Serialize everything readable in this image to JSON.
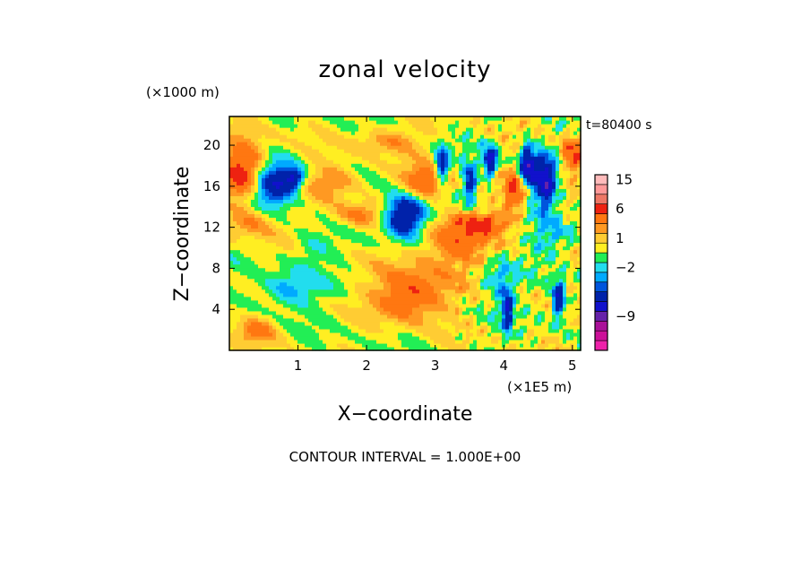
{
  "chart_data": {
    "type": "heatmap",
    "title": "zonal velocity",
    "xlabel": "X−coordinate",
    "ylabel": "Z−coordinate",
    "x_unit": "(×1E5 m)",
    "y_unit": "(×1000 m)",
    "time_label": "t=80400 s",
    "contour_interval_text": "CONTOUR INTERVAL = 1.000E+00",
    "xlim": [
      0,
      5.12
    ],
    "ylim": [
      0,
      22.8
    ],
    "x_ticks": [
      1,
      2,
      3,
      4,
      5
    ],
    "y_ticks": [
      4,
      8,
      12,
      16,
      20
    ],
    "colorbar": {
      "levels": [
        {
          "max": -14,
          "color": "#ee22aa"
        },
        {
          "max": -12,
          "color": "#cc1199"
        },
        {
          "max": -10,
          "color": "#aa1199"
        },
        {
          "max": -8,
          "color": "#6622aa"
        },
        {
          "max": -6,
          "color": "#1111cc"
        },
        {
          "max": -4,
          "color": "#0022aa"
        },
        {
          "max": -3,
          "color": "#0055dd"
        },
        {
          "max": -2,
          "color": "#00aaff"
        },
        {
          "max": -1,
          "color": "#22ddee"
        },
        {
          "max": 0,
          "color": "#22ee55"
        },
        {
          "max": 1,
          "color": "#ffee22"
        },
        {
          "max": 2,
          "color": "#ffcc33"
        },
        {
          "max": 3,
          "color": "#ff9922"
        },
        {
          "max": 5,
          "color": "#ff7711"
        },
        {
          "max": 8,
          "color": "#ee2211"
        },
        {
          "max": 11,
          "color": "#ee7766"
        },
        {
          "max": 14,
          "color": "#ff9999"
        },
        {
          "max": 99,
          "color": "#ffbbbb"
        }
      ],
      "tick_labels": [
        {
          "label": "15",
          "value": 15
        },
        {
          "label": "6",
          "value": 6
        },
        {
          "label": "1",
          "value": 1
        },
        {
          "label": "−2",
          "value": -2
        },
        {
          "label": "−9",
          "value": -9
        }
      ]
    },
    "features": [
      {
        "x": 0.25,
        "z": 17.3,
        "sx": 0.35,
        "sz": 3.0,
        "amp": 7
      },
      {
        "x": 0.6,
        "z": 16.3,
        "sx": 0.35,
        "sz": 2.2,
        "amp": -8
      },
      {
        "x": 1.5,
        "z": 16.5,
        "sx": 0.4,
        "sz": 1.6,
        "amp": 3
      },
      {
        "x": 2.55,
        "z": 13.2,
        "sx": 0.3,
        "sz": 2.0,
        "amp": -8
      },
      {
        "x": 2.9,
        "z": 16.4,
        "sx": 0.35,
        "sz": 1.6,
        "amp": 5
      },
      {
        "x": 2.65,
        "z": 5.5,
        "sx": 0.5,
        "sz": 2.5,
        "amp": 5
      },
      {
        "x": 3.3,
        "z": 10.5,
        "sx": 0.5,
        "sz": 2.5,
        "amp": 4
      },
      {
        "x": 3.1,
        "z": 17.8,
        "sx": 0.1,
        "sz": 1.8,
        "amp": -7
      },
      {
        "x": 3.5,
        "z": 16.5,
        "sx": 0.1,
        "sz": 1.8,
        "amp": -6
      },
      {
        "x": 3.8,
        "z": 18.5,
        "sx": 0.1,
        "sz": 1.5,
        "amp": -7
      },
      {
        "x": 4.35,
        "z": 18.0,
        "sx": 0.12,
        "sz": 2.0,
        "amp": -8
      },
      {
        "x": 4.6,
        "z": 16.5,
        "sx": 0.15,
        "sz": 2.5,
        "amp": -8
      },
      {
        "x": 4.15,
        "z": 15.5,
        "sx": 0.15,
        "sz": 2.0,
        "amp": 5
      },
      {
        "x": 5.0,
        "z": 19.0,
        "sx": 0.15,
        "sz": 2.0,
        "amp": 5
      },
      {
        "x": 4.05,
        "z": 4.0,
        "sx": 0.08,
        "sz": 2.0,
        "amp": -6
      },
      {
        "x": 4.8,
        "z": 5.0,
        "sx": 0.1,
        "sz": 1.8,
        "amp": -7
      },
      {
        "x": 0.85,
        "z": 6.0,
        "sx": 0.4,
        "sz": 1.8,
        "amp": -3
      },
      {
        "x": 1.9,
        "z": 13.2,
        "sx": 0.4,
        "sz": 1.2,
        "amp": 3
      },
      {
        "x": 1.2,
        "z": 10.0,
        "sx": 0.3,
        "sz": 1.5,
        "amp": -1.5
      },
      {
        "x": 0.4,
        "z": 2.0,
        "sx": 0.3,
        "sz": 1.2,
        "amp": 3
      },
      {
        "x": 3.7,
        "z": 12.5,
        "sx": 0.4,
        "sz": 1.0,
        "amp": 4
      },
      {
        "x": 2.3,
        "z": 20.5,
        "sx": 0.5,
        "sz": 1.2,
        "amp": 2.5
      },
      {
        "x": 0.3,
        "z": 12.5,
        "sx": 0.35,
        "sz": 1.5,
        "amp": 2.5
      },
      {
        "x": 4.7,
        "z": 11.0,
        "sx": 0.35,
        "sz": 2.0,
        "amp": -2
      },
      {
        "x": 3.9,
        "z": 7.0,
        "sx": 0.25,
        "sz": 2.0,
        "amp": -2.5
      },
      {
        "x": 0.95,
        "z": 16.8,
        "sx": 0.15,
        "sz": 1.0,
        "amp": -5
      }
    ]
  }
}
